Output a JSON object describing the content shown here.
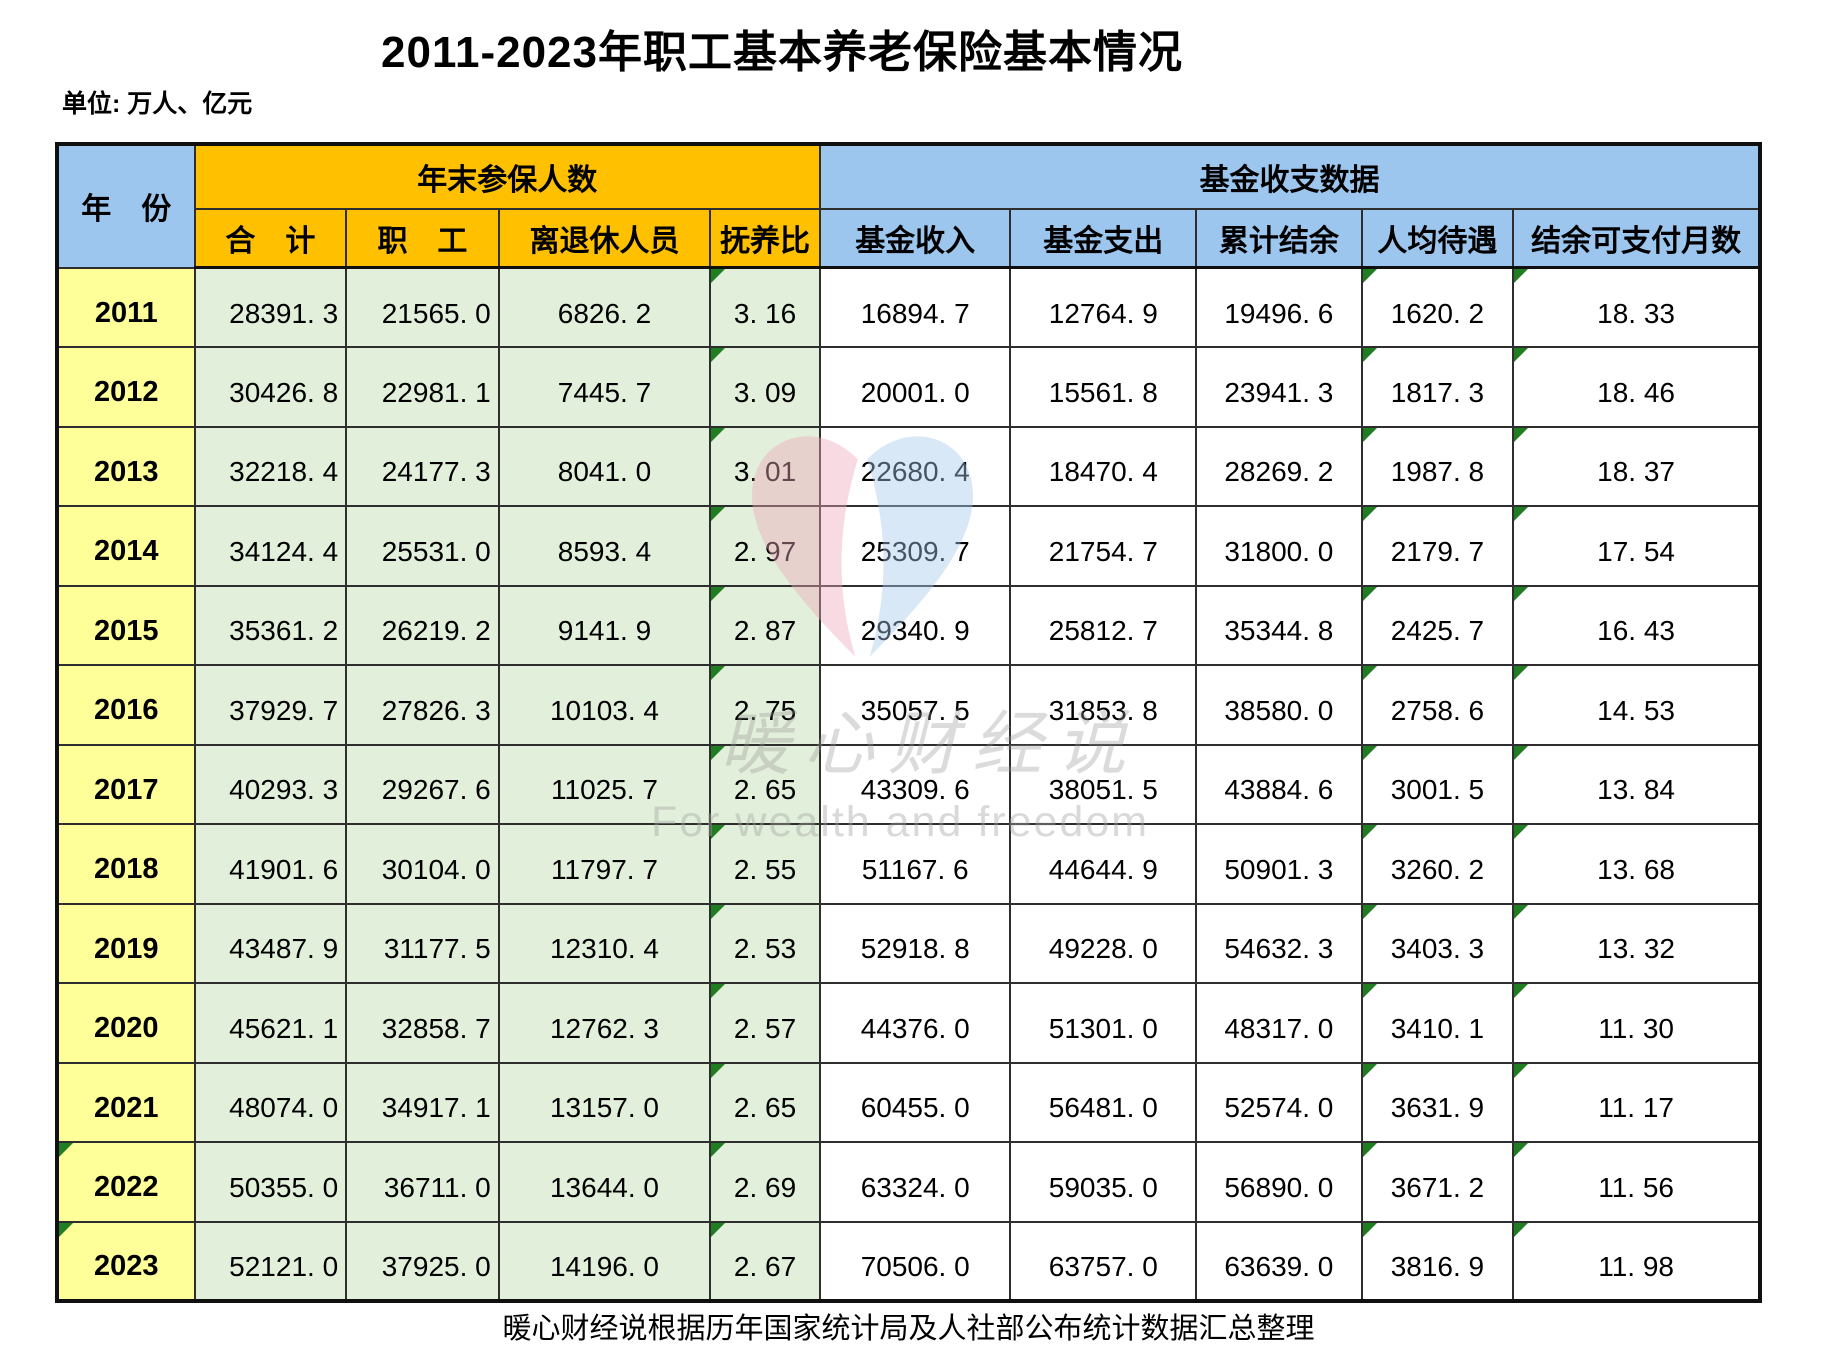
{
  "title": "2011-2023年职工基本养老保险基本情况",
  "unit_label": "单位: 万人、亿元",
  "footer_note": "暖心财经说根据历年国家统计局及人社部公布统计数据汇总整理",
  "watermark": {
    "brand_text": "暖心财经说",
    "slogan": "For wealth and freedom"
  },
  "colors": {
    "header_blue": "#9cc6ee",
    "header_orange": "#ffc000",
    "year_yellow": "#ffff9a",
    "data_green": "#e2efda",
    "marker_green": "#217d21",
    "heart_pink": "#efa9bd",
    "heart_blue": "#a7c9ec"
  },
  "table": {
    "year_header": "年　份",
    "group_headers": [
      "年末参保人数",
      "基金收支数据"
    ],
    "sub_headers": [
      "合　计",
      "职　工",
      "离退休人员",
      "抚养比",
      "基金收入",
      "基金支出",
      "累计结余",
      "人均待遇",
      "结余可支付月数"
    ],
    "marker_value_columns": [
      3,
      7,
      8
    ],
    "rows": [
      {
        "year": "2011",
        "year_marker": false,
        "values": [
          "28391. 3",
          "21565. 0",
          "6826. 2",
          "3. 16",
          "16894. 7",
          "12764. 9",
          "19496. 6",
          "1620. 2",
          "18. 33"
        ]
      },
      {
        "year": "2012",
        "year_marker": false,
        "values": [
          "30426. 8",
          "22981. 1",
          "7445. 7",
          "3. 09",
          "20001. 0",
          "15561. 8",
          "23941. 3",
          "1817. 3",
          "18. 46"
        ]
      },
      {
        "year": "2013",
        "year_marker": false,
        "values": [
          "32218. 4",
          "24177. 3",
          "8041. 0",
          "3. 01",
          "22680. 4",
          "18470. 4",
          "28269. 2",
          "1987. 8",
          "18. 37"
        ]
      },
      {
        "year": "2014",
        "year_marker": false,
        "values": [
          "34124. 4",
          "25531. 0",
          "8593. 4",
          "2. 97",
          "25309. 7",
          "21754. 7",
          "31800. 0",
          "2179. 7",
          "17. 54"
        ]
      },
      {
        "year": "2015",
        "year_marker": false,
        "values": [
          "35361. 2",
          "26219. 2",
          "9141. 9",
          "2. 87",
          "29340. 9",
          "25812. 7",
          "35344. 8",
          "2425. 7",
          "16. 43"
        ]
      },
      {
        "year": "2016",
        "year_marker": false,
        "values": [
          "37929. 7",
          "27826. 3",
          "10103. 4",
          "2. 75",
          "35057. 5",
          "31853. 8",
          "38580. 0",
          "2758. 6",
          "14. 53"
        ]
      },
      {
        "year": "2017",
        "year_marker": false,
        "values": [
          "40293. 3",
          "29267. 6",
          "11025. 7",
          "2. 65",
          "43309. 6",
          "38051. 5",
          "43884. 6",
          "3001. 5",
          "13. 84"
        ]
      },
      {
        "year": "2018",
        "year_marker": false,
        "values": [
          "41901. 6",
          "30104. 0",
          "11797. 7",
          "2. 55",
          "51167. 6",
          "44644. 9",
          "50901. 3",
          "3260. 2",
          "13. 68"
        ]
      },
      {
        "year": "2019",
        "year_marker": false,
        "values": [
          "43487. 9",
          "31177. 5",
          "12310. 4",
          "2. 53",
          "52918. 8",
          "49228. 0",
          "54632. 3",
          "3403. 3",
          "13. 32"
        ]
      },
      {
        "year": "2020",
        "year_marker": false,
        "values": [
          "45621. 1",
          "32858. 7",
          "12762. 3",
          "2. 57",
          "44376. 0",
          "51301. 0",
          "48317. 0",
          "3410. 1",
          "11. 30"
        ]
      },
      {
        "year": "2021",
        "year_marker": false,
        "values": [
          "48074. 0",
          "34917. 1",
          "13157. 0",
          "2. 65",
          "60455. 0",
          "56481. 0",
          "52574. 0",
          "3631. 9",
          "11. 17"
        ]
      },
      {
        "year": "2022",
        "year_marker": true,
        "values": [
          "50355. 0",
          "36711. 0",
          "13644. 0",
          "2. 69",
          "63324. 0",
          "59035. 0",
          "56890. 0",
          "3671. 2",
          "11. 56"
        ]
      },
      {
        "year": "2023",
        "year_marker": true,
        "values": [
          "52121. 0",
          "37925. 0",
          "14196. 0",
          "2. 67",
          "70506. 0",
          "63757. 0",
          "63639. 0",
          "3816. 9",
          "11. 98"
        ]
      }
    ]
  },
  "chart_data": {
    "type": "table",
    "title": "2011-2023年职工基本养老保险基本情况",
    "unit": "万人、亿元",
    "column_groups": {
      "年末参保人数": [
        "合计",
        "职工",
        "离退休人员",
        "抚养比"
      ],
      "基金收支数据": [
        "基金收入",
        "基金支出",
        "累计结余",
        "人均待遇",
        "结余可支付月数"
      ]
    },
    "columns": [
      "年份",
      "合计",
      "职工",
      "离退休人员",
      "抚养比",
      "基金收入",
      "基金支出",
      "累计结余",
      "人均待遇",
      "结余可支付月数"
    ],
    "rows": [
      [
        2011,
        28391.3,
        21565.0,
        6826.2,
        3.16,
        16894.7,
        12764.9,
        19496.6,
        1620.2,
        18.33
      ],
      [
        2012,
        30426.8,
        22981.1,
        7445.7,
        3.09,
        20001.0,
        15561.8,
        23941.3,
        1817.3,
        18.46
      ],
      [
        2013,
        32218.4,
        24177.3,
        8041.0,
        3.01,
        22680.4,
        18470.4,
        28269.2,
        1987.8,
        18.37
      ],
      [
        2014,
        34124.4,
        25531.0,
        8593.4,
        2.97,
        25309.7,
        21754.7,
        31800.0,
        2179.7,
        17.54
      ],
      [
        2015,
        35361.2,
        26219.2,
        9141.9,
        2.87,
        29340.9,
        25812.7,
        35344.8,
        2425.7,
        16.43
      ],
      [
        2016,
        37929.7,
        27826.3,
        10103.4,
        2.75,
        35057.5,
        31853.8,
        38580.0,
        2758.6,
        14.53
      ],
      [
        2017,
        40293.3,
        29267.6,
        11025.7,
        2.65,
        43309.6,
        38051.5,
        43884.6,
        3001.5,
        13.84
      ],
      [
        2018,
        41901.6,
        30104.0,
        11797.7,
        2.55,
        51167.6,
        44644.9,
        50901.3,
        3260.2,
        13.68
      ],
      [
        2019,
        43487.9,
        31177.5,
        12310.4,
        2.53,
        52918.8,
        49228.0,
        54632.3,
        3403.3,
        13.32
      ],
      [
        2020,
        45621.1,
        32858.7,
        12762.3,
        2.57,
        44376.0,
        51301.0,
        48317.0,
        3410.1,
        11.3
      ],
      [
        2021,
        48074.0,
        34917.1,
        13157.0,
        2.65,
        60455.0,
        56481.0,
        52574.0,
        3631.9,
        11.17
      ],
      [
        2022,
        50355.0,
        36711.0,
        13644.0,
        2.69,
        63324.0,
        59035.0,
        56890.0,
        3671.2,
        11.56
      ],
      [
        2023,
        52121.0,
        37925.0,
        14196.0,
        2.67,
        70506.0,
        63757.0,
        63639.0,
        3816.9,
        11.98
      ]
    ]
  }
}
